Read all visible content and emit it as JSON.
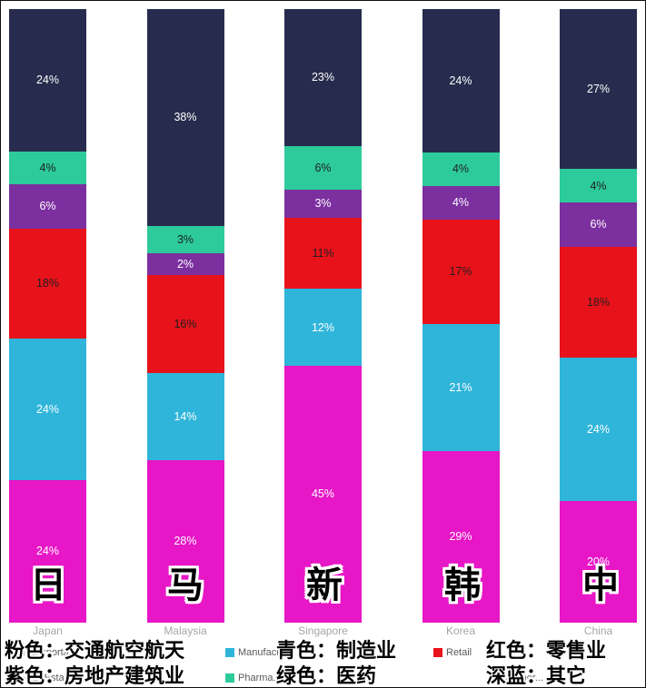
{
  "chart_data": {
    "type": "bar",
    "stacked": true,
    "title": "",
    "xlabel": "",
    "ylabel": "",
    "ylim": [
      0,
      100
    ],
    "grid": false,
    "legend_position": "bottom",
    "value_suffix": "%",
    "categories": [
      "Japan",
      "Malaysia",
      "Singapore",
      "Korea",
      "China"
    ],
    "series": [
      {
        "name": "Transportat...",
        "color": "#e716c6",
        "label_color": "#ffffff",
        "values": [
          24,
          28,
          45,
          29,
          20
        ]
      },
      {
        "name": "Manufact...",
        "color": "#2fb5da",
        "label_color": "#ffffff",
        "values": [
          24,
          14,
          12,
          21,
          24
        ]
      },
      {
        "name": "Retail",
        "color": "#e8121a",
        "label_color": "#1f1f1f",
        "values": [
          18,
          16,
          11,
          17,
          18
        ]
      },
      {
        "name": "Real Estate...",
        "color": "#7c2f9f",
        "label_color": "#ffffff",
        "values": [
          6,
          2,
          3,
          4,
          6
        ]
      },
      {
        "name": "Pharma...",
        "color": "#2dcb9b",
        "label_color": "#1f1f1f",
        "values": [
          4,
          3,
          6,
          4,
          4
        ]
      },
      {
        "name": "Other...",
        "color": "#272c4e",
        "label_color": "#ffffff",
        "values": [
          24,
          38,
          23,
          24,
          27
        ]
      }
    ]
  },
  "legend": {
    "items": [
      {
        "label": "Transportat...",
        "color": "#e716c6"
      },
      {
        "label": "Manufact...",
        "color": "#2fb5da"
      },
      {
        "label": "Retail",
        "color": "#e8121a"
      },
      {
        "label": "Real Estate...",
        "color": "#7c2f9f"
      },
      {
        "label": "Pharma...",
        "color": "#2dcb9b"
      },
      {
        "label": "Other...",
        "color": "#272c4e"
      }
    ]
  },
  "annotations": {
    "big_labels": [
      "日",
      "马",
      "新",
      "韩",
      "中"
    ],
    "cn_legend": {
      "row1": [
        "粉色：交通航空航天",
        "青色：制造业",
        "红色：零售业"
      ],
      "row2": [
        "紫色：房地产建筑业",
        "绿色：医药",
        "深蓝：其它"
      ]
    }
  }
}
